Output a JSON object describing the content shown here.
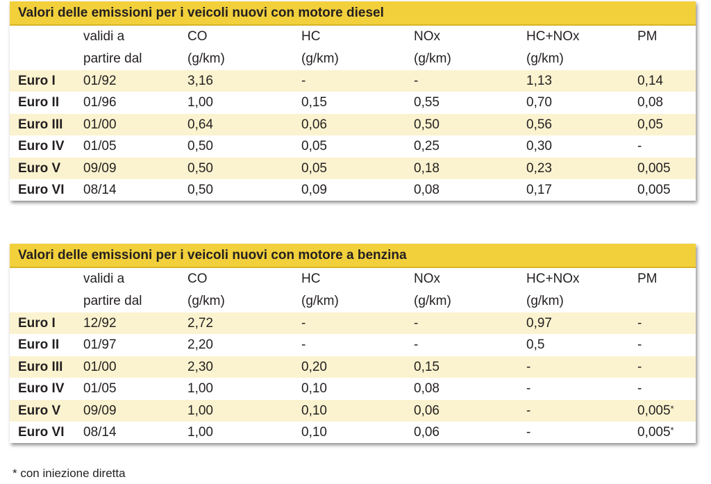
{
  "footnote": "* con iniezione diretta",
  "colors": {
    "title_bar": "#f2d03b",
    "row_shade": "#fbf3cf"
  },
  "tables": [
    {
      "title": "Valori delle emissioni per i veicoli nuovi con motore diesel",
      "header_line1": [
        "validi a",
        "CO",
        "HC",
        "NOx",
        "HC+NOx",
        "PM"
      ],
      "header_line2": [
        "partire dal",
        "(g/km)",
        "(g/km)",
        "(g/km)",
        "(g/km)",
        ""
      ],
      "rows": [
        [
          "Euro I",
          "01/92",
          "3,16",
          "-",
          "-",
          "1,13",
          "0,14"
        ],
        [
          "Euro II",
          "01/96",
          "1,00",
          "0,15",
          "0,55",
          "0,70",
          "0,08"
        ],
        [
          "Euro III",
          "01/00",
          "0,64",
          "0,06",
          "0,50",
          "0,56",
          "0,05"
        ],
        [
          "Euro IV",
          "01/05",
          "0,50",
          "0,05",
          "0,25",
          "0,30",
          "-"
        ],
        [
          "Euro V",
          "09/09",
          "0,50",
          "0,05",
          "0,18",
          "0,23",
          "0,005"
        ],
        [
          "Euro VI",
          "08/14",
          "0,50",
          "0,09",
          "0,08",
          "0,17",
          "0,005"
        ]
      ]
    },
    {
      "title": "Valori delle emissioni per i veicoli nuovi con motore a benzina",
      "header_line1": [
        "validi a",
        "CO",
        "HC",
        "NOx",
        "HC+NOx",
        "PM"
      ],
      "header_line2": [
        "partire dal",
        "(g/km)",
        "(g/km)",
        "(g/km)",
        "(g/km)",
        ""
      ],
      "rows": [
        [
          "Euro I",
          "12/92",
          "2,72",
          "-",
          "-",
          "0,97",
          "-"
        ],
        [
          "Euro II",
          "01/97",
          "2,20",
          "-",
          "-",
          "0,5",
          "-"
        ],
        [
          "Euro III",
          "01/00",
          "2,30",
          "0,20",
          "0,15",
          "-",
          "-"
        ],
        [
          "Euro IV",
          "01/05",
          "1,00",
          "0,10",
          "0,08",
          "-",
          "-"
        ],
        [
          "Euro V",
          "09/09",
          "1,00",
          "0,10",
          "0,06",
          "-",
          "0,005*"
        ],
        [
          "Euro VI",
          "08/14",
          "1,00",
          "0,10",
          "0,06",
          "-",
          "0,005*"
        ]
      ]
    }
  ]
}
